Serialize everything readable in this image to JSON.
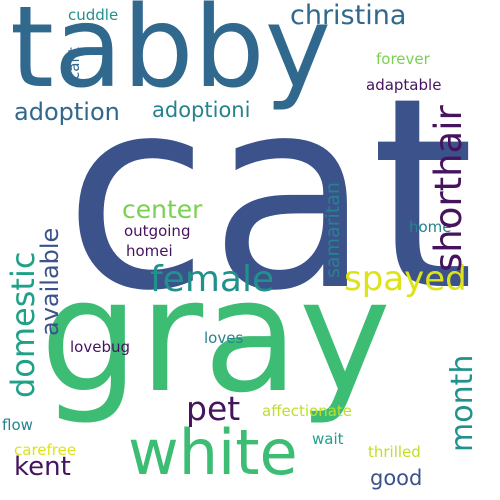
{
  "words": {
    "cat": "cat",
    "tabby": "tabby",
    "gray": "gray",
    "white": "white",
    "christina": "christina",
    "adoption": "adoption",
    "adoptioni": "adoptioni",
    "shorthair": "shorthair",
    "female": "female",
    "spayed": "spayed",
    "center": "center",
    "domestic": "domestic",
    "available": "available",
    "samaritan": "samaritan",
    "month": "month",
    "pet": "pet",
    "kent": "kent",
    "good": "good",
    "cuddle": "cuddle",
    "cant": "cant",
    "forever": "forever",
    "adaptable": "adaptable",
    "outgoing": "outgoing",
    "homei": "homei",
    "home": "home",
    "lovebug": "lovebug",
    "loves": "loves",
    "affectionate": "affectionate",
    "flow": "flow",
    "carefree": "carefree",
    "wait": "wait",
    "thrilled": "thrilled"
  },
  "colors": {
    "background": "#ffffff",
    "dark_purple": "#46145f",
    "indigo": "#3b528b",
    "steel_blue": "#31688e",
    "teal_blue": "#26828e",
    "teal": "#21918c",
    "sea_green": "#1fa187",
    "green": "#3dbc74",
    "light_green": "#7ad151",
    "yellow_green": "#bddf26",
    "yellow": "#dde318"
  }
}
